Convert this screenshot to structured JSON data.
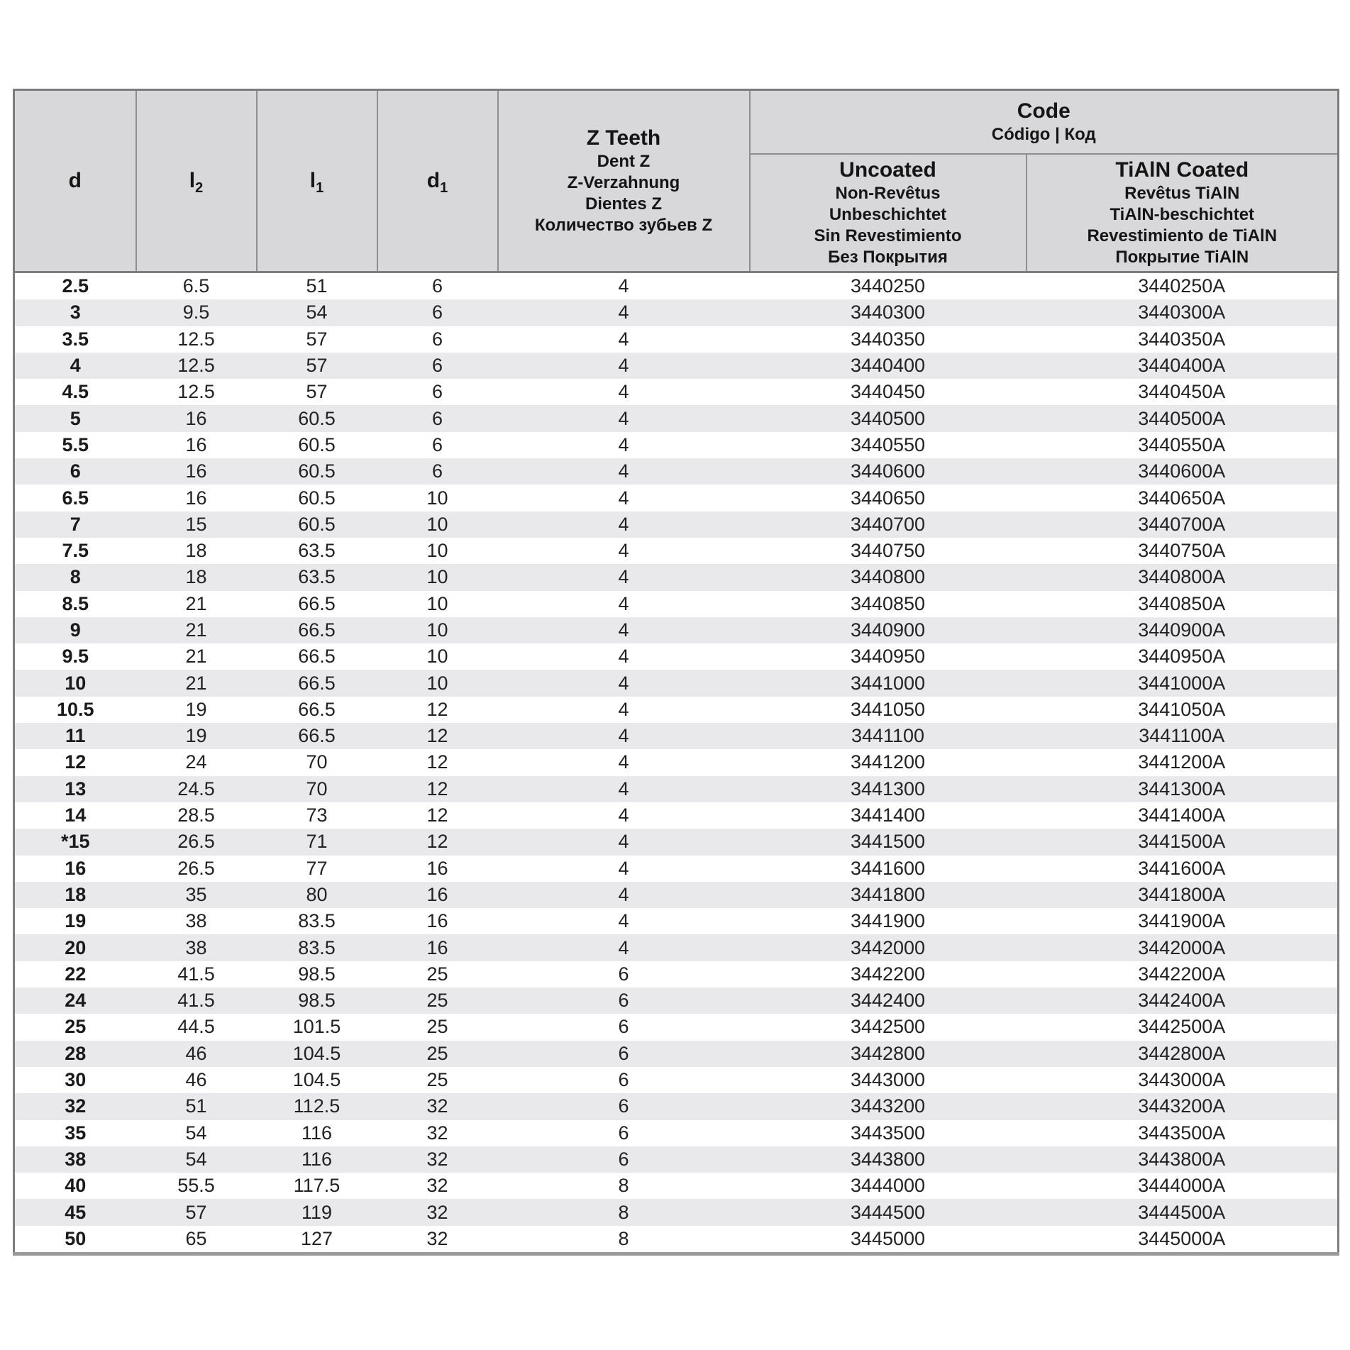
{
  "colors": {
    "header_bg": "#d8d8da",
    "stripe_bg": "#e9e9eb",
    "grid_border": "#8e8e8e",
    "frame_border": "#7d7d7d",
    "bottom_rule": "#9a9a9a",
    "text": "#1d1d1d"
  },
  "header": {
    "col_d": {
      "base": "d"
    },
    "col_l2": {
      "base": "l",
      "sub": "2"
    },
    "col_l1": {
      "base": "l",
      "sub": "1"
    },
    "col_d1": {
      "base": "d",
      "sub": "1"
    },
    "col_z": {
      "title": "Z Teeth",
      "subtitles": [
        "Dent Z",
        "Z-Verzahnung",
        "Dientes Z",
        "Количество зубьев Z"
      ]
    },
    "code_group": {
      "title": "Code",
      "subtitle": "Código | Код"
    },
    "col_uncoated": {
      "title": "Uncoated",
      "subtitles": [
        "Non-Revêtus",
        "Unbeschichtet",
        "Sin Revestimiento",
        "Без Покрытия"
      ]
    },
    "col_coated": {
      "title": "TiAlN Coated",
      "subtitles": [
        "Revêtus TiAlN",
        "TiAlN-beschichtet",
        "Revestimiento de TiAlN",
        "Покрытие TiAlN"
      ]
    }
  },
  "rows": [
    {
      "d": "2.5",
      "l2": "6.5",
      "l1": "51",
      "d1": "6",
      "z": "4",
      "uncoated": "3440250",
      "coated": "3440250A"
    },
    {
      "d": "3",
      "l2": "9.5",
      "l1": "54",
      "d1": "6",
      "z": "4",
      "uncoated": "3440300",
      "coated": "3440300A"
    },
    {
      "d": "3.5",
      "l2": "12.5",
      "l1": "57",
      "d1": "6",
      "z": "4",
      "uncoated": "3440350",
      "coated": "3440350A"
    },
    {
      "d": "4",
      "l2": "12.5",
      "l1": "57",
      "d1": "6",
      "z": "4",
      "uncoated": "3440400",
      "coated": "3440400A"
    },
    {
      "d": "4.5",
      "l2": "12.5",
      "l1": "57",
      "d1": "6",
      "z": "4",
      "uncoated": "3440450",
      "coated": "3440450A"
    },
    {
      "d": "5",
      "l2": "16",
      "l1": "60.5",
      "d1": "6",
      "z": "4",
      "uncoated": "3440500",
      "coated": "3440500A"
    },
    {
      "d": "5.5",
      "l2": "16",
      "l1": "60.5",
      "d1": "6",
      "z": "4",
      "uncoated": "3440550",
      "coated": "3440550A"
    },
    {
      "d": "6",
      "l2": "16",
      "l1": "60.5",
      "d1": "6",
      "z": "4",
      "uncoated": "3440600",
      "coated": "3440600A"
    },
    {
      "d": "6.5",
      "l2": "16",
      "l1": "60.5",
      "d1": "10",
      "z": "4",
      "uncoated": "3440650",
      "coated": "3440650A"
    },
    {
      "d": "7",
      "l2": "15",
      "l1": "60.5",
      "d1": "10",
      "z": "4",
      "uncoated": "3440700",
      "coated": "3440700A"
    },
    {
      "d": "7.5",
      "l2": "18",
      "l1": "63.5",
      "d1": "10",
      "z": "4",
      "uncoated": "3440750",
      "coated": "3440750A"
    },
    {
      "d": "8",
      "l2": "18",
      "l1": "63.5",
      "d1": "10",
      "z": "4",
      "uncoated": "3440800",
      "coated": "3440800A"
    },
    {
      "d": "8.5",
      "l2": "21",
      "l1": "66.5",
      "d1": "10",
      "z": "4",
      "uncoated": "3440850",
      "coated": "3440850A"
    },
    {
      "d": "9",
      "l2": "21",
      "l1": "66.5",
      "d1": "10",
      "z": "4",
      "uncoated": "3440900",
      "coated": "3440900A"
    },
    {
      "d": "9.5",
      "l2": "21",
      "l1": "66.5",
      "d1": "10",
      "z": "4",
      "uncoated": "3440950",
      "coated": "3440950A"
    },
    {
      "d": "10",
      "l2": "21",
      "l1": "66.5",
      "d1": "10",
      "z": "4",
      "uncoated": "3441000",
      "coated": "3441000A"
    },
    {
      "d": "10.5",
      "l2": "19",
      "l1": "66.5",
      "d1": "12",
      "z": "4",
      "uncoated": "3441050",
      "coated": "3441050A"
    },
    {
      "d": "11",
      "l2": "19",
      "l1": "66.5",
      "d1": "12",
      "z": "4",
      "uncoated": "3441100",
      "coated": "3441100A"
    },
    {
      "d": "12",
      "l2": "24",
      "l1": "70",
      "d1": "12",
      "z": "4",
      "uncoated": "3441200",
      "coated": "3441200A"
    },
    {
      "d": "13",
      "l2": "24.5",
      "l1": "70",
      "d1": "12",
      "z": "4",
      "uncoated": "3441300",
      "coated": "3441300A"
    },
    {
      "d": "14",
      "l2": "28.5",
      "l1": "73",
      "d1": "12",
      "z": "4",
      "uncoated": "3441400",
      "coated": "3441400A"
    },
    {
      "d": "*15",
      "l2": "26.5",
      "l1": "71",
      "d1": "12",
      "z": "4",
      "uncoated": "3441500",
      "coated": "3441500A"
    },
    {
      "d": "16",
      "l2": "26.5",
      "l1": "77",
      "d1": "16",
      "z": "4",
      "uncoated": "3441600",
      "coated": "3441600A"
    },
    {
      "d": "18",
      "l2": "35",
      "l1": "80",
      "d1": "16",
      "z": "4",
      "uncoated": "3441800",
      "coated": "3441800A"
    },
    {
      "d": "19",
      "l2": "38",
      "l1": "83.5",
      "d1": "16",
      "z": "4",
      "uncoated": "3441900",
      "coated": "3441900A"
    },
    {
      "d": "20",
      "l2": "38",
      "l1": "83.5",
      "d1": "16",
      "z": "4",
      "uncoated": "3442000",
      "coated": "3442000A"
    },
    {
      "d": "22",
      "l2": "41.5",
      "l1": "98.5",
      "d1": "25",
      "z": "6",
      "uncoated": "3442200",
      "coated": "3442200A"
    },
    {
      "d": "24",
      "l2": "41.5",
      "l1": "98.5",
      "d1": "25",
      "z": "6",
      "uncoated": "3442400",
      "coated": "3442400A"
    },
    {
      "d": "25",
      "l2": "44.5",
      "l1": "101.5",
      "d1": "25",
      "z": "6",
      "uncoated": "3442500",
      "coated": "3442500A"
    },
    {
      "d": "28",
      "l2": "46",
      "l1": "104.5",
      "d1": "25",
      "z": "6",
      "uncoated": "3442800",
      "coated": "3442800A"
    },
    {
      "d": "30",
      "l2": "46",
      "l1": "104.5",
      "d1": "25",
      "z": "6",
      "uncoated": "3443000",
      "coated": "3443000A"
    },
    {
      "d": "32",
      "l2": "51",
      "l1": "112.5",
      "d1": "32",
      "z": "6",
      "uncoated": "3443200",
      "coated": "3443200A"
    },
    {
      "d": "35",
      "l2": "54",
      "l1": "116",
      "d1": "32",
      "z": "6",
      "uncoated": "3443500",
      "coated": "3443500A"
    },
    {
      "d": "38",
      "l2": "54",
      "l1": "116",
      "d1": "32",
      "z": "6",
      "uncoated": "3443800",
      "coated": "3443800A"
    },
    {
      "d": "40",
      "l2": "55.5",
      "l1": "117.5",
      "d1": "32",
      "z": "8",
      "uncoated": "3444000",
      "coated": "3444000A"
    },
    {
      "d": "45",
      "l2": "57",
      "l1": "119",
      "d1": "32",
      "z": "8",
      "uncoated": "3444500",
      "coated": "3444500A"
    },
    {
      "d": "50",
      "l2": "65",
      "l1": "127",
      "d1": "32",
      "z": "8",
      "uncoated": "3445000",
      "coated": "3445000A"
    }
  ]
}
